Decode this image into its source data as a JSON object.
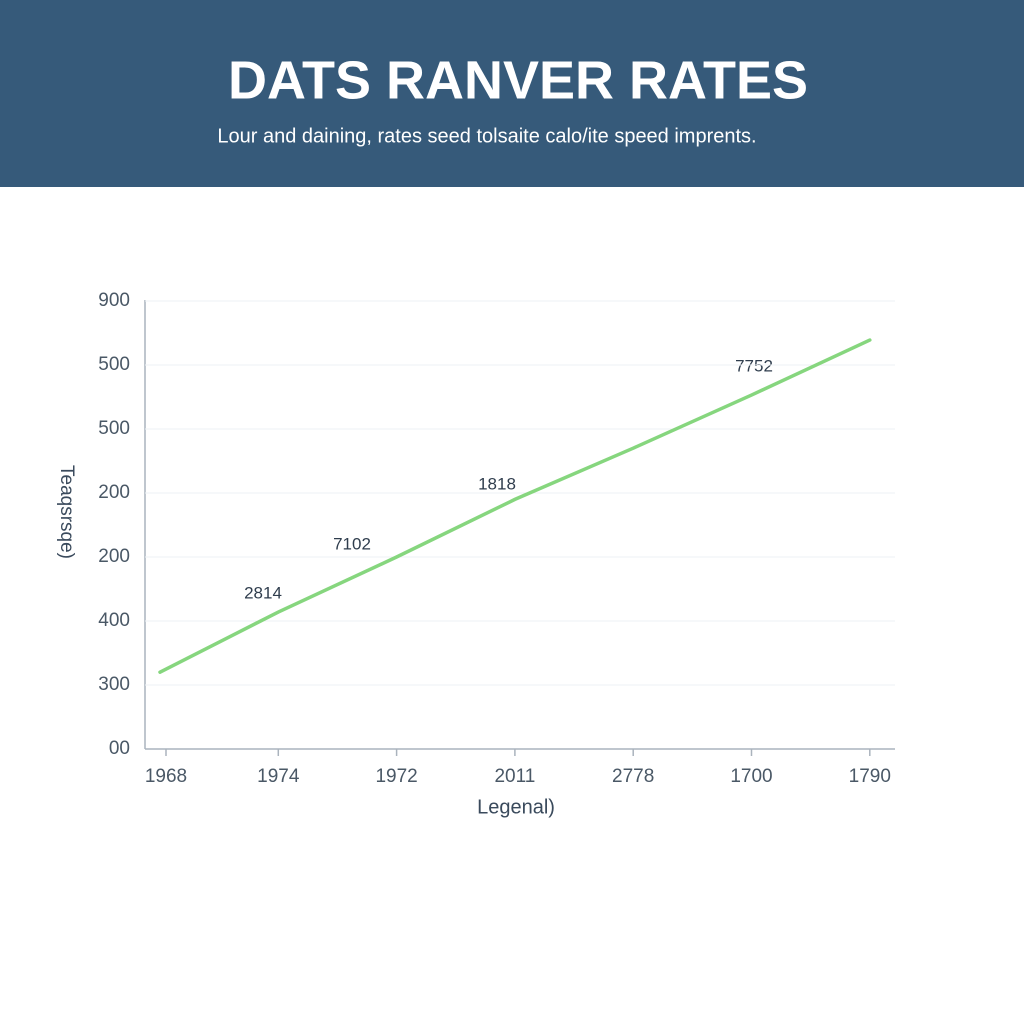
{
  "chart_data": {
    "type": "line",
    "title": "DATS RANVER RATES",
    "subtitle": "Lour and daining, rates seed tolsaite calo/ite speed imprents.",
    "y_label": "Teaqsrsqe)",
    "x_label": "Legenal)",
    "categories": [
      "1968",
      "1974",
      "1972",
      "2011",
      "2778",
      "1700",
      "1790"
    ],
    "series": [
      {
        "name": null,
        "color": "#86d67e",
        "values": [
          1.2,
          2.14,
          3.0,
          3.9,
          4.7,
          5.53,
          6.39
        ]
      }
    ],
    "annotations": [
      "2814",
      "7102",
      "1818",
      "7752"
    ],
    "ylim": [
      0,
      7.2
    ],
    "yticks": [
      {
        "value": 0,
        "label": "00"
      },
      {
        "value": 1,
        "label": "300"
      },
      {
        "value": 2,
        "label": "400"
      },
      {
        "value": 3,
        "label": "200"
      },
      {
        "value": 4,
        "label": "200"
      },
      {
        "value": 5,
        "label": "500"
      },
      {
        "value": 6,
        "label": "500"
      },
      {
        "value": 7,
        "label": "900"
      }
    ],
    "grid": true
  }
}
